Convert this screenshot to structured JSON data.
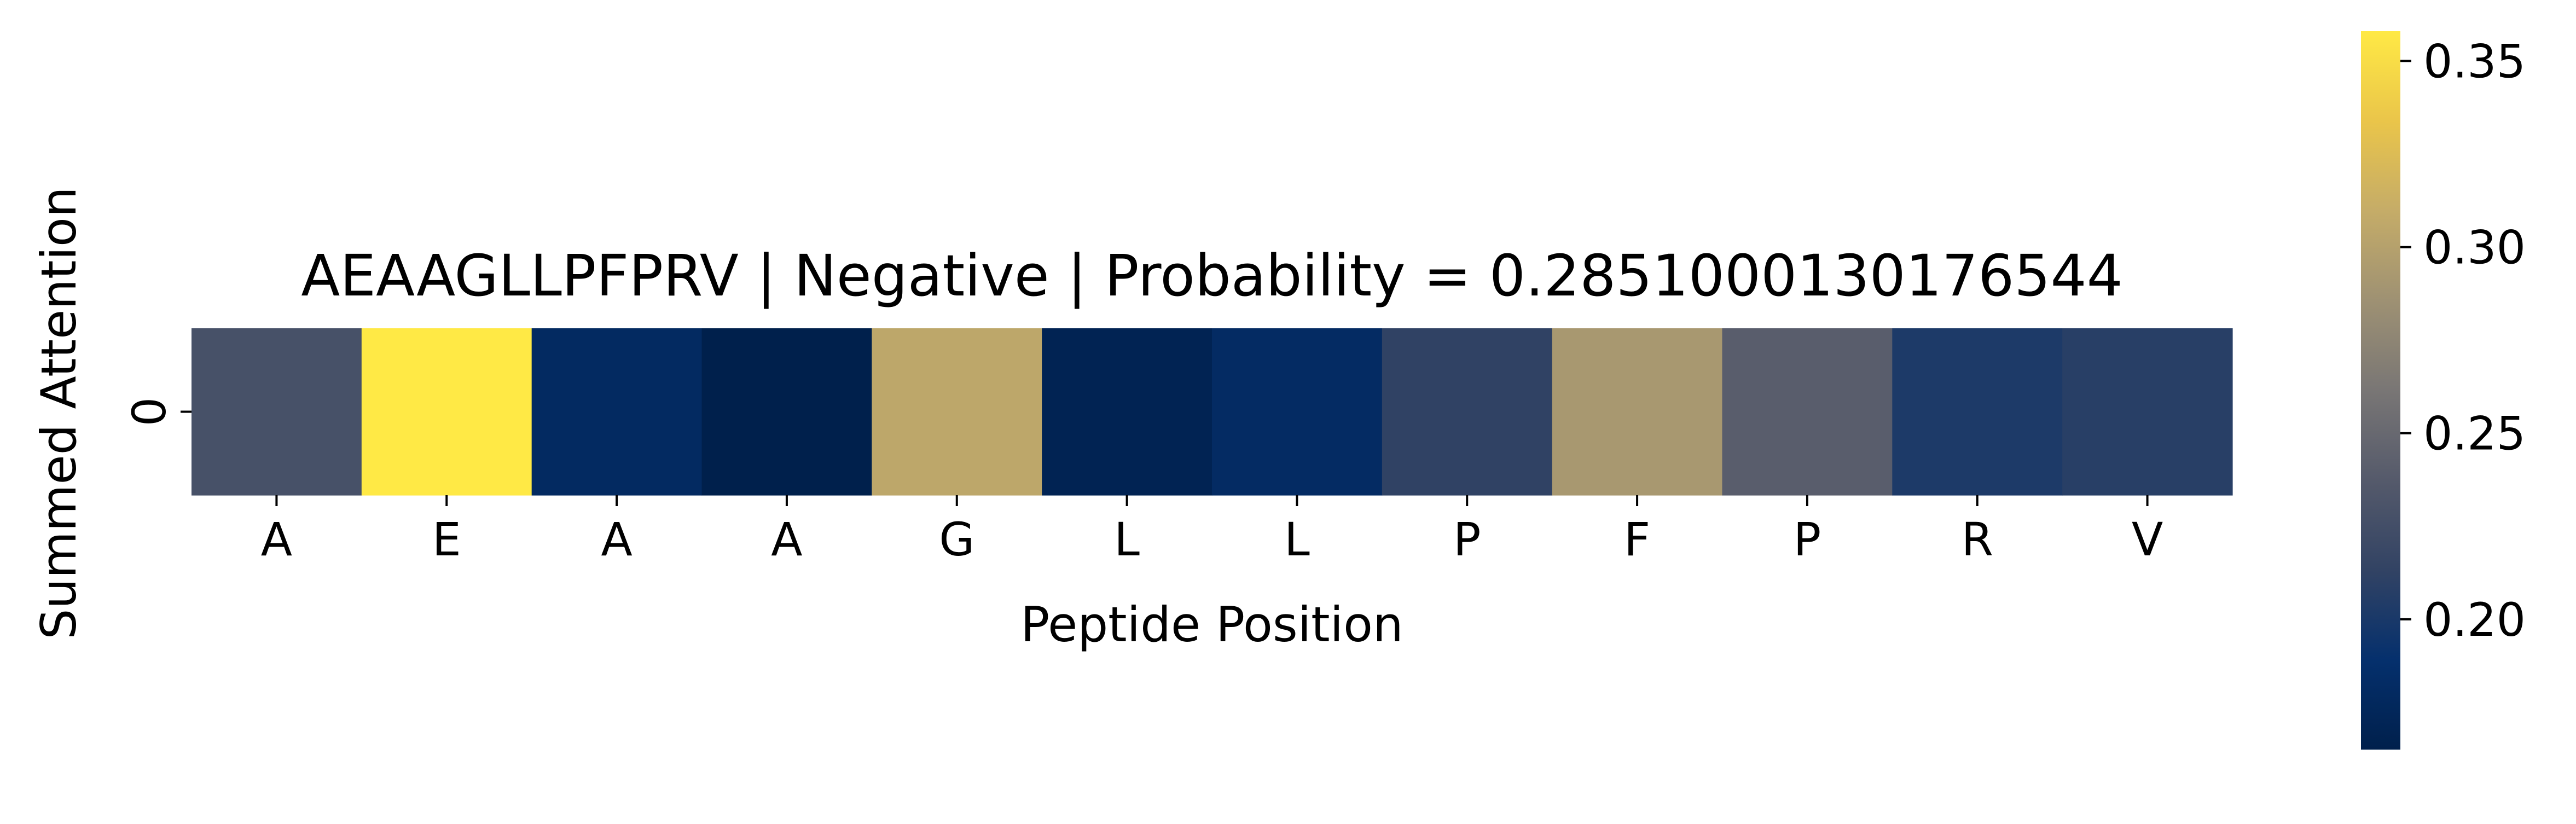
{
  "chart_data": {
    "type": "heatmap",
    "title": "AEAAGLLPFPRV | Negative | Probability = 0.2851000130176544",
    "xlabel": "Peptide Position",
    "ylabel": "Summed Attention",
    "x_categories": [
      "A",
      "E",
      "A",
      "A",
      "G",
      "L",
      "L",
      "P",
      "F",
      "P",
      "R",
      "V"
    ],
    "y_categories": [
      "0"
    ],
    "values": [
      [
        0.228,
        0.358,
        0.18,
        0.165,
        0.305,
        0.17,
        0.182,
        0.212,
        0.292,
        0.24,
        0.202,
        0.208
      ]
    ],
    "colorbar": {
      "min": 0.165,
      "max": 0.358,
      "ticks": [
        0.2,
        0.25,
        0.3,
        0.35
      ],
      "tick_labels": [
        "0.20",
        "0.25",
        "0.30",
        "0.35"
      ],
      "colormap": "cividis"
    },
    "grid": false
  }
}
